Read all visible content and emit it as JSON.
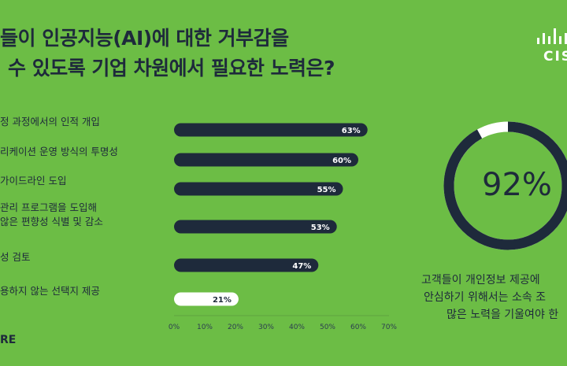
{
  "title": {
    "line1": "들이 인공지능(AI)에 대한 거부감을",
    "line2": "수 있도록 기업 차원에서 필요한 노력은?"
  },
  "logo": {
    "text": "CIS"
  },
  "chart_data": [
    {
      "type": "bar",
      "orientation": "horizontal",
      "categories": [
        [
          "정 과정에서의 인적 개입"
        ],
        [
          "리케이션 운영 방식의 투명성"
        ],
        [
          "가이드라인 도입"
        ],
        [
          "관리 프로그램을 도입해",
          "않은 편향성 식별 및 감소"
        ],
        [
          "성 검토"
        ],
        [
          "용하지 않는 선택지 제공"
        ]
      ],
      "values": [
        63,
        60,
        55,
        53,
        47,
        21
      ],
      "data_labels": [
        "63%",
        "60%",
        "55%",
        "53%",
        "47%",
        "21%"
      ],
      "highlight": [
        false,
        false,
        false,
        false,
        false,
        true
      ],
      "xlim": [
        0,
        70
      ],
      "x_ticks": [
        "0%",
        "10%",
        "20%",
        "30%",
        "40%",
        "50%",
        "60%",
        "70%"
      ],
      "bar_color": "#1e2a3b",
      "highlight_color": "#ffffff"
    },
    {
      "type": "pie",
      "style": "donut",
      "value": 92,
      "label": "92%",
      "caption": [
        "고객들이 개인정보 제공에",
        "안심하기 위해서는 소속 조",
        "많은 노력을 기울여야 한"
      ],
      "fill_color": "#1e2a3b",
      "remainder_color": "#ffffff"
    }
  ],
  "source": "RE",
  "colors": {
    "background": "#6cbd45",
    "text": "#1e2a3b"
  }
}
